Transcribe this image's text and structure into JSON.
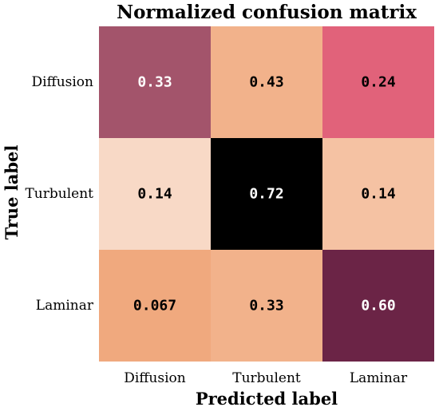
{
  "chart_data": {
    "type": "heatmap",
    "title": "Normalized confusion matrix",
    "xlabel": "Predicted label",
    "ylabel": "True label",
    "x_categories": [
      "Diffusion",
      "Turbulent",
      "Laminar"
    ],
    "y_categories": [
      "Diffusion",
      "Turbulent",
      "Laminar"
    ],
    "values": [
      [
        0.33,
        0.43,
        0.24
      ],
      [
        0.14,
        0.72,
        0.14
      ],
      [
        0.067,
        0.33,
        0.6
      ]
    ],
    "value_labels": [
      [
        "0.33",
        "0.43",
        "0.24"
      ],
      [
        "0.14",
        "0.72",
        "0.14"
      ],
      [
        "0.067",
        "0.33",
        "0.60"
      ]
    ],
    "cell_colors": [
      [
        "#a3546b",
        "#f2b28b",
        "#e1627a"
      ],
      [
        "#f8d9c6",
        "#000000",
        "#f5c2a3"
      ],
      [
        "#f0a97e",
        "#f2b28b",
        "#6b2446"
      ]
    ],
    "label_colors": [
      [
        "#ffffff",
        "#000000",
        "#000000"
      ],
      [
        "#000000",
        "#ffffff",
        "#000000"
      ],
      [
        "#000000",
        "#000000",
        "#ffffff"
      ]
    ],
    "grid": false,
    "colorbar": false
  }
}
